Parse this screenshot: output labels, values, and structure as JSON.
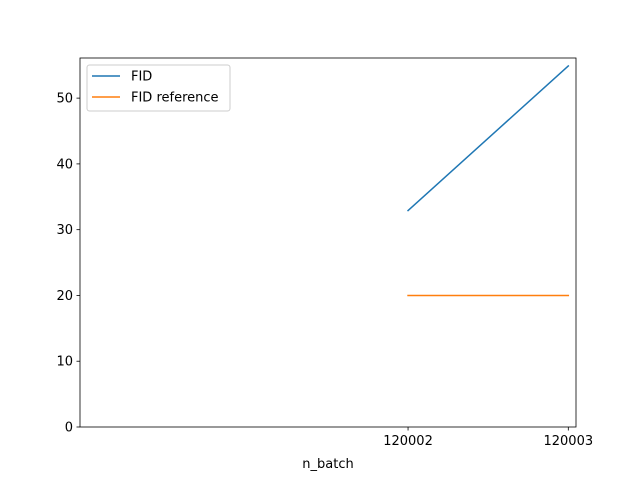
{
  "chart_data": {
    "type": "line",
    "title": "",
    "xlabel": "n_batch",
    "ylabel": "",
    "x": [
      120002,
      120003
    ],
    "x_tick_labels": [
      "120002",
      "120003"
    ],
    "xlim": [
      119999.953,
      120003.048
    ],
    "ylim": [
      0,
      56.1
    ],
    "y_ticks": [
      0,
      10,
      20,
      30,
      40,
      50
    ],
    "y_tick_labels": [
      "0",
      "10",
      "20",
      "30",
      "40",
      "50"
    ],
    "grid": false,
    "legend_position": "upper-left",
    "series": [
      {
        "name": "FID",
        "color": "#1f77b4",
        "values": [
          32.9,
          54.9
        ]
      },
      {
        "name": "FID reference",
        "color": "#ff7f0e",
        "values": [
          20,
          20
        ]
      }
    ]
  }
}
